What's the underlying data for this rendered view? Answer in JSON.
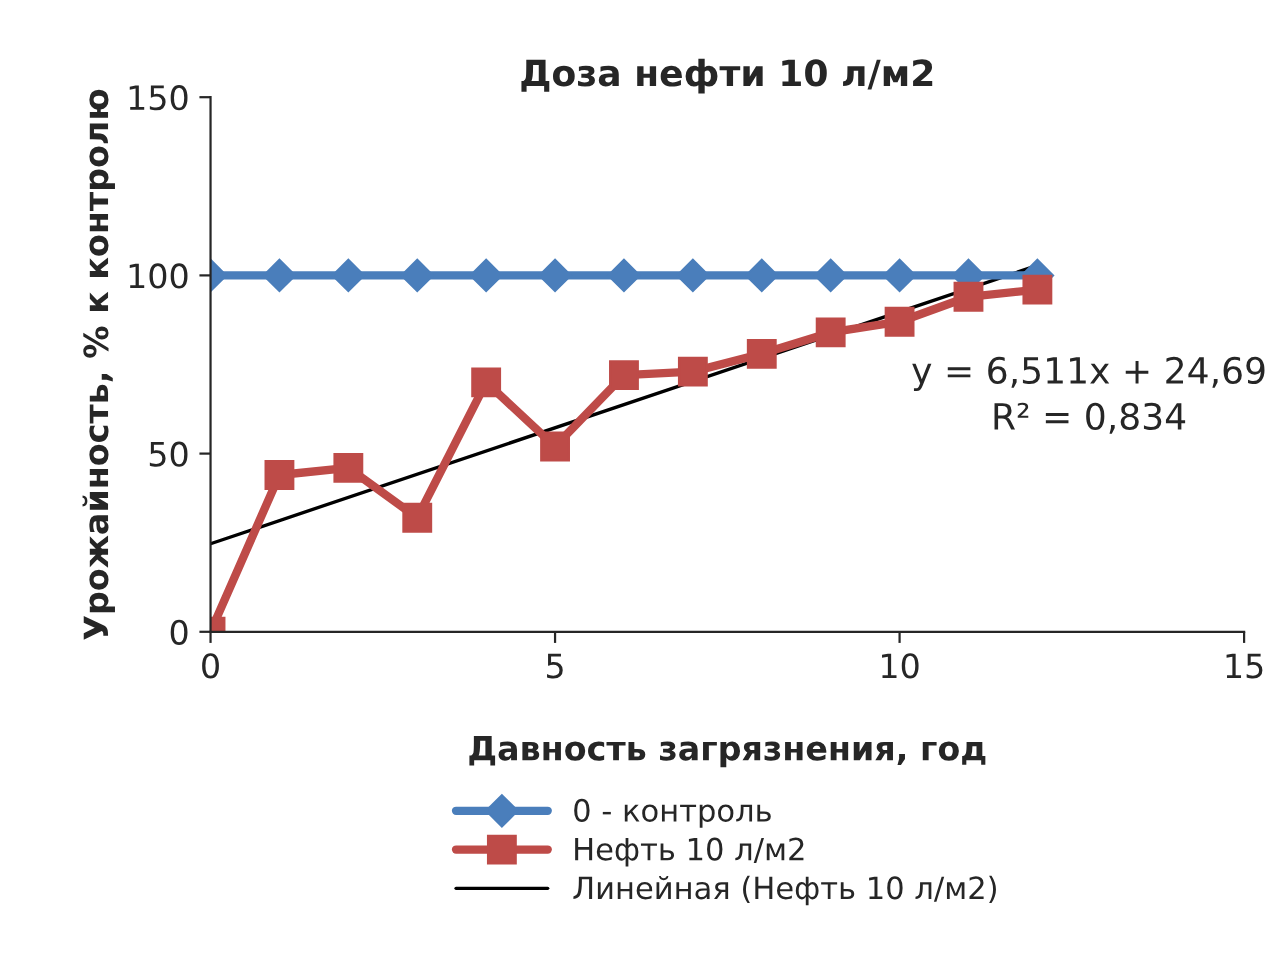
{
  "chart_data": {
    "type": "line",
    "title": "Доза нефти 10 л/м2",
    "xlabel": "Давность загрязнения, год",
    "ylabel": "Урожайность, % к контролю",
    "x": [
      0,
      1,
      2,
      3,
      4,
      5,
      6,
      7,
      8,
      9,
      10,
      11,
      12
    ],
    "series": [
      {
        "name": "0 - контроль",
        "color": "#4a7ebb",
        "marker": "diamond",
        "values": [
          100,
          100,
          100,
          100,
          100,
          100,
          100,
          100,
          100,
          100,
          100,
          100,
          100
        ]
      },
      {
        "name": "Нефть 10 л/м2",
        "color": "#be4b48",
        "marker": "square",
        "values": [
          0,
          44,
          46,
          32,
          70,
          52,
          72,
          73,
          78,
          84,
          87,
          94,
          96
        ]
      },
      {
        "name": "Линейная (Нефть 10 л/м2)",
        "color": "#000000",
        "marker": "none",
        "x": [
          0,
          12
        ],
        "values": [
          24.7,
          102.8
        ]
      }
    ],
    "annotations": [
      "y = 6,511x + 24,69\nR² = 0,834"
    ],
    "xlim": [
      0,
      15
    ],
    "xticks": [
      0,
      5,
      10,
      15
    ],
    "ylim": [
      0,
      150
    ],
    "yticks": [
      0,
      50,
      100,
      150
    ],
    "grid": false,
    "legend": "bottom"
  }
}
